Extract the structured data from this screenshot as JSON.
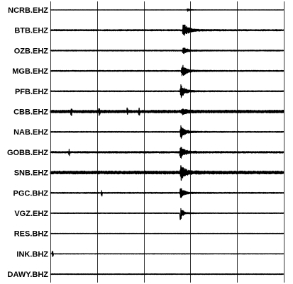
{
  "chart_data": {
    "type": "line",
    "title": "",
    "xlabel": "",
    "ylabel": "",
    "xlim": [
      0,
      100
    ],
    "vertical_grid_at": [
      0,
      20,
      40,
      60,
      80,
      100
    ],
    "grid": true,
    "colors": {
      "trace": "#000000",
      "grid": "#000000",
      "background": "#ffffff"
    },
    "series": [
      {
        "name": "NCRB.EHZ",
        "noise": 0.3,
        "onset": 58.5,
        "peak": 3,
        "duration": 3.0
      },
      {
        "name": "BTB.EHZ",
        "noise": 1.0,
        "onset": 56.5,
        "peak": 12,
        "duration": 6.0
      },
      {
        "name": "OZB.EHZ",
        "noise": 0.8,
        "onset": 56.5,
        "peak": 7,
        "duration": 4.5
      },
      {
        "name": "MGB.EHZ",
        "noise": 0.8,
        "onset": 56.0,
        "peak": 12,
        "duration": 5.5
      },
      {
        "name": "PFB.EHZ",
        "noise": 0.8,
        "onset": 55.5,
        "peak": 12,
        "duration": 5.0
      },
      {
        "name": "CBB.EHZ",
        "noise": 1.8,
        "onset": 56.0,
        "peak": 4,
        "duration": 6.0,
        "spikes": [
          9,
          21,
          33,
          38
        ]
      },
      {
        "name": "NAB.EHZ",
        "noise": 0.8,
        "onset": 55.5,
        "peak": 12,
        "duration": 5.0
      },
      {
        "name": "GOBB.EHZ",
        "noise": 1.2,
        "onset": 55.3,
        "peak": 12,
        "duration": 5.0,
        "spikes": [
          8
        ]
      },
      {
        "name": "SNB.EHZ",
        "noise": 2.0,
        "onset": 55.5,
        "peak": 13,
        "duration": 5.0
      },
      {
        "name": "PGC.BHZ",
        "noise": 0.9,
        "onset": 55.4,
        "peak": 10,
        "duration": 4.0,
        "spikes": [
          22
        ]
      },
      {
        "name": "VGZ.EHZ",
        "noise": 0.5,
        "onset": 55.4,
        "peak": 14,
        "duration": 3.0,
        "downward": true
      },
      {
        "name": "RES.BHZ",
        "noise": 0.4
      },
      {
        "name": "INK.BHZ",
        "noise": 0.4,
        "spikes": [
          1
        ]
      },
      {
        "name": "DAWY.BHZ",
        "noise": 0.6
      }
    ]
  }
}
